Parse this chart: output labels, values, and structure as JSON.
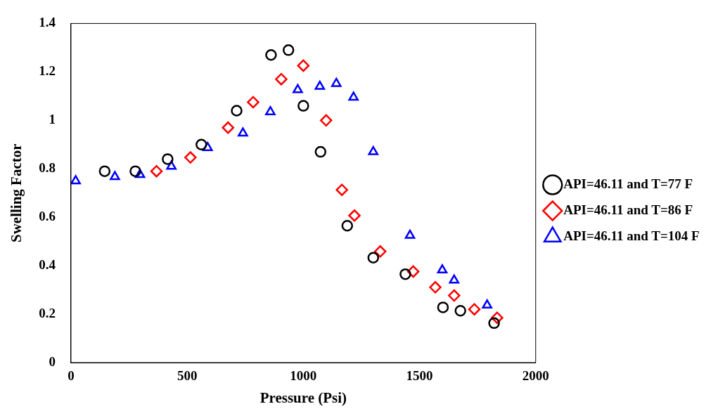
{
  "chart_data": {
    "type": "scatter",
    "xlabel": "Pressure (Psi)",
    "ylabel": "Swelling Factor",
    "xlim": [
      0,
      2000
    ],
    "xticks": [
      0,
      500,
      1000,
      1500,
      2000
    ],
    "ylim": [
      0,
      1.4
    ],
    "yticks": [
      0,
      0.2,
      0.4,
      0.6,
      0.8,
      1,
      1.2,
      1.4
    ],
    "grid": false,
    "legend": "right",
    "series": [
      {
        "name": "API=46.11 and T=77 F",
        "color": "#000000",
        "marker": "circle",
        "x": [
          145,
          277,
          416,
          561,
          713,
          861,
          936,
          1000,
          1074,
          1189,
          1301,
          1439,
          1601,
          1676,
          1821
        ],
        "values": [
          0.79,
          0.79,
          0.84,
          0.9,
          1.04,
          1.27,
          1.29,
          1.06,
          0.87,
          0.565,
          0.433,
          0.365,
          0.228,
          0.214,
          0.163
        ]
      },
      {
        "name": "API=46.11 and T=86 F",
        "color": "#ff0000",
        "marker": "diamond",
        "x": [
          368,
          514,
          676,
          784,
          905,
          1000,
          1098,
          1166,
          1220,
          1331,
          1473,
          1568,
          1649,
          1736,
          1834
        ],
        "values": [
          0.79,
          0.847,
          0.97,
          1.075,
          1.17,
          1.226,
          1.0,
          0.713,
          0.607,
          0.459,
          0.376,
          0.311,
          0.277,
          0.22,
          0.185
        ]
      },
      {
        "name": "API=46.11 and T=104 F",
        "color": "#0000ff",
        "marker": "triangle",
        "x": [
          20,
          189,
          297,
          432,
          588,
          740,
          858,
          976,
          1071,
          1142,
          1216,
          1301,
          1459,
          1598,
          1649,
          1791
        ],
        "values": [
          0.75,
          0.767,
          0.776,
          0.81,
          0.887,
          0.947,
          1.035,
          1.126,
          1.14,
          1.152,
          1.095,
          0.87,
          0.525,
          0.382,
          0.34,
          0.237
        ]
      }
    ]
  }
}
